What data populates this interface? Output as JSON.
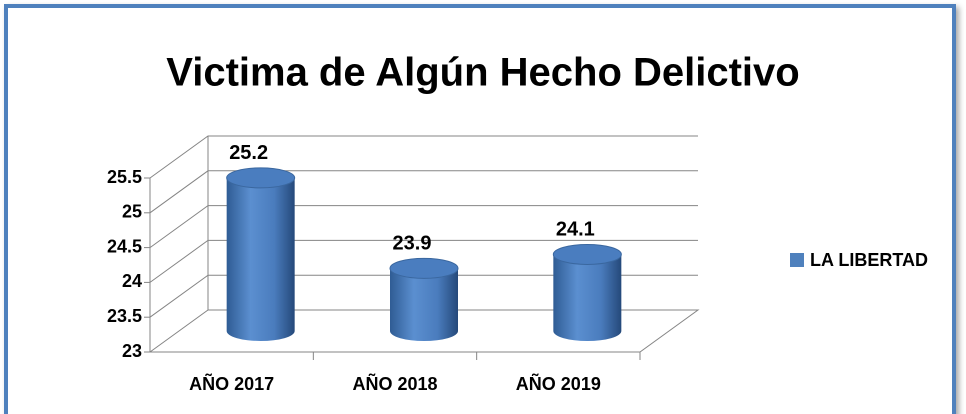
{
  "chart_data": {
    "type": "bar",
    "title": "Victima de Algún Hecho Delictivo",
    "categories": [
      "AÑO 2017",
      "AÑO 2018",
      "AÑO 2019"
    ],
    "series": [
      {
        "name": "LA LIBERTAD",
        "color": "#4f81bd",
        "values": [
          25.2,
          23.9,
          24.1
        ]
      }
    ],
    "ylim": [
      23,
      25.5
    ],
    "yticks": [
      23,
      23.5,
      24,
      24.5,
      25,
      25.5
    ],
    "grid": true,
    "legend": "right"
  }
}
